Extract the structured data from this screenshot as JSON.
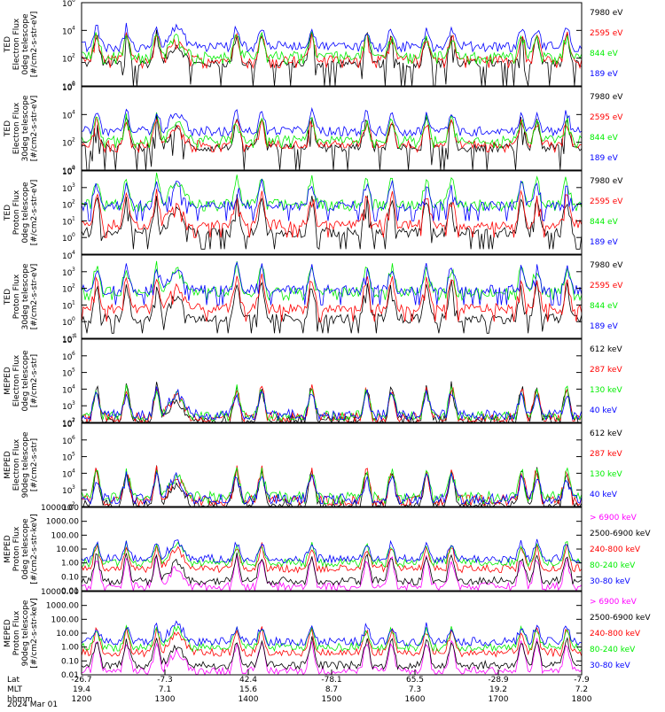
{
  "colors": {
    "blue": "#0000ff",
    "red": "#ff0000",
    "green": "#00ee00",
    "black": "#000000",
    "magenta": "#ff00ff"
  },
  "x_axis": {
    "rows": [
      {
        "label": "Lat",
        "values": [
          "-26.7",
          "-7.3",
          "42.4",
          "-78.1",
          "65.5",
          "-28.9",
          "-7.9"
        ]
      },
      {
        "label": "MLT",
        "values": [
          "19.4",
          "7.1",
          "15.6",
          "8.7",
          "7.3",
          "19.2",
          "7.2"
        ]
      },
      {
        "label": "hhmm",
        "values": [
          "1200",
          "1300",
          "1400",
          "1500",
          "1600",
          "1700",
          "1800"
        ]
      }
    ],
    "date": "2024 Mar 01"
  },
  "chart_data": [
    {
      "type": "line",
      "ylabel": [
        "TED",
        "Electron Flux",
        "0deg telescope",
        "[#/cm2-s-str-eV]"
      ],
      "yscale": "log",
      "ylim": [
        1,
        1000000
      ],
      "yticks": [
        {
          "base": "10",
          "exp": "6"
        },
        {
          "base": "10",
          "exp": "4"
        },
        {
          "base": "10",
          "exp": "2"
        },
        {
          "base": "10",
          "exp": "0"
        }
      ],
      "series": [
        {
          "name": "7980 eV",
          "color": "black",
          "baseline": 40,
          "floor": 1
        },
        {
          "name": "2595 eV",
          "color": "red",
          "baseline": 80,
          "floor": 20
        },
        {
          "name": "844 eV",
          "color": "green",
          "baseline": 150,
          "floor": 40
        },
        {
          "name": "189 eV",
          "color": "blue",
          "baseline": 800,
          "floor": 300
        }
      ]
    },
    {
      "type": "line",
      "ylabel": [
        "TED",
        "Electron Flux",
        "30deg telescope",
        "[#/cm2-s-str-eV]"
      ],
      "yscale": "log",
      "ylim": [
        1,
        1000000
      ],
      "yticks": [
        {
          "base": "10",
          "exp": "6"
        },
        {
          "base": "10",
          "exp": "4"
        },
        {
          "base": "10",
          "exp": "2"
        },
        {
          "base": "10",
          "exp": "0"
        }
      ],
      "series": [
        {
          "name": "7980 eV",
          "color": "black",
          "baseline": 40,
          "floor": 1
        },
        {
          "name": "2595 eV",
          "color": "red",
          "baseline": 70,
          "floor": 20
        },
        {
          "name": "844 eV",
          "color": "green",
          "baseline": 150,
          "floor": 40
        },
        {
          "name": "189 eV",
          "color": "blue",
          "baseline": 700,
          "floor": 300
        }
      ]
    },
    {
      "type": "line",
      "ylabel": [
        "TED",
        "Proton Flux",
        "0deg telescope",
        "[#/cm2-s-str-eV]"
      ],
      "yscale": "log",
      "ylim": [
        0.1,
        10000
      ],
      "yticks": [
        {
          "base": "10",
          "exp": "4"
        },
        {
          "base": "10",
          "exp": "3"
        },
        {
          "base": "10",
          "exp": "2"
        },
        {
          "base": "10",
          "exp": "1"
        },
        {
          "base": "10",
          "exp": "0"
        }
      ],
      "series": [
        {
          "name": "7980 eV",
          "color": "black",
          "baseline": 2,
          "floor": 0.2
        },
        {
          "name": "2595 eV",
          "color": "red",
          "baseline": 6,
          "floor": 1
        },
        {
          "name": "844 eV",
          "color": "green",
          "baseline": 100,
          "floor": 40
        },
        {
          "name": "189 eV",
          "color": "blue",
          "baseline": 80,
          "floor": 10
        }
      ]
    },
    {
      "type": "line",
      "ylabel": [
        "TED",
        "Proton Flux",
        "30deg telescope",
        "[#/cm2-s-str-eV]"
      ],
      "yscale": "log",
      "ylim": [
        0.1,
        10000
      ],
      "yticks": [
        {
          "base": "10",
          "exp": "4"
        },
        {
          "base": "10",
          "exp": "3"
        },
        {
          "base": "10",
          "exp": "2"
        },
        {
          "base": "10",
          "exp": "1"
        },
        {
          "base": "10",
          "exp": "0"
        },
        {
          "base": "10",
          "exp": "-1"
        }
      ],
      "series": [
        {
          "name": "7980 eV",
          "color": "black",
          "baseline": 1.5,
          "floor": 0.2
        },
        {
          "name": "2595 eV",
          "color": "red",
          "baseline": 6,
          "floor": 1
        },
        {
          "name": "844 eV",
          "color": "green",
          "baseline": 60,
          "floor": 20
        },
        {
          "name": "189 eV",
          "color": "blue",
          "baseline": 80,
          "floor": 10
        }
      ]
    },
    {
      "type": "line",
      "ylabel": [
        "MEPED",
        "Electron Flux",
        "0deg telescope",
        "[#/cm2-s-str]"
      ],
      "yscale": "log",
      "ylim": [
        100,
        10000000
      ],
      "yticks": [
        {
          "base": "10",
          "exp": "7"
        },
        {
          "base": "10",
          "exp": "6"
        },
        {
          "base": "10",
          "exp": "5"
        },
        {
          "base": "10",
          "exp": "4"
        },
        {
          "base": "10",
          "exp": "3"
        },
        {
          "base": "10",
          "exp": "2"
        }
      ],
      "series": [
        {
          "name": "612 keV",
          "color": "black",
          "baseline": 130,
          "floor": 100
        },
        {
          "name": "287 keV",
          "color": "red",
          "baseline": 200,
          "floor": 120
        },
        {
          "name": "130 keV",
          "color": "green",
          "baseline": 250,
          "floor": 150
        },
        {
          "name": "40 keV",
          "color": "blue",
          "baseline": 300,
          "floor": 150
        }
      ]
    },
    {
      "type": "line",
      "ylabel": [
        "MEPED",
        "Electron Flux",
        "90deg telescope",
        "[#/cm2-s-str]"
      ],
      "yscale": "log",
      "ylim": [
        100,
        10000000
      ],
      "yticks": [
        {
          "base": "10",
          "exp": "7"
        },
        {
          "base": "10",
          "exp": "6"
        },
        {
          "base": "10",
          "exp": "5"
        },
        {
          "base": "10",
          "exp": "4"
        },
        {
          "base": "10",
          "exp": "3"
        },
        {
          "base": "10",
          "exp": "2"
        }
      ],
      "series": [
        {
          "name": "612 keV",
          "color": "black",
          "baseline": 130,
          "floor": 100
        },
        {
          "name": "287 keV",
          "color": "red",
          "baseline": 250,
          "floor": 120
        },
        {
          "name": "130 keV",
          "color": "green",
          "baseline": 400,
          "floor": 150
        },
        {
          "name": "40 keV",
          "color": "blue",
          "baseline": 300,
          "floor": 150
        }
      ]
    },
    {
      "type": "line",
      "ylabel": [
        "MEPED",
        "Proton Flux",
        "0deg telescope",
        "[#/cm2-s-str-keV]"
      ],
      "yscale": "log",
      "ylim": [
        0.01,
        10000
      ],
      "yticks": [
        {
          "text": "10000.00"
        },
        {
          "text": "1000.00"
        },
        {
          "text": "100.00"
        },
        {
          "text": "10.00"
        },
        {
          "text": "1.00"
        },
        {
          "text": "0.10"
        },
        {
          "text": "0.01"
        }
      ],
      "series": [
        {
          "name": "> 6900 keV",
          "color": "magenta",
          "baseline": 0.02,
          "floor": 0.02
        },
        {
          "name": "2500-6900 keV",
          "color": "black",
          "baseline": 0.05,
          "floor": 0.05
        },
        {
          "name": "240-800 keV",
          "color": "red",
          "baseline": 0.4,
          "floor": 0.3
        },
        {
          "name": "80-240 keV",
          "color": "green",
          "baseline": 1,
          "floor": 0.8
        },
        {
          "name": "30-80 keV",
          "color": "blue",
          "baseline": 2,
          "floor": 1.5
        }
      ]
    },
    {
      "type": "line",
      "ylabel": [
        "MEPED",
        "Proton Flux",
        "90deg telescope",
        "[#/cm2-s-str-keV]"
      ],
      "yscale": "log",
      "ylim": [
        0.01,
        10000
      ],
      "yticks": [
        {
          "text": "10000.00"
        },
        {
          "text": "1000.00"
        },
        {
          "text": "100.00"
        },
        {
          "text": "10.00"
        },
        {
          "text": "1.00"
        },
        {
          "text": "0.10"
        },
        {
          "text": "0.01"
        }
      ],
      "series": [
        {
          "name": "> 6900 keV",
          "color": "magenta",
          "baseline": 0.02,
          "floor": 0.02
        },
        {
          "name": "2500-6900 keV",
          "color": "black",
          "baseline": 0.05,
          "floor": 0.05
        },
        {
          "name": "240-800 keV",
          "color": "red",
          "baseline": 0.4,
          "floor": 0.3
        },
        {
          "name": "80-240 keV",
          "color": "green",
          "baseline": 1,
          "floor": 0.8
        },
        {
          "name": "30-80 keV",
          "color": "blue",
          "baseline": 2.5,
          "floor": 1.5
        }
      ]
    }
  ]
}
